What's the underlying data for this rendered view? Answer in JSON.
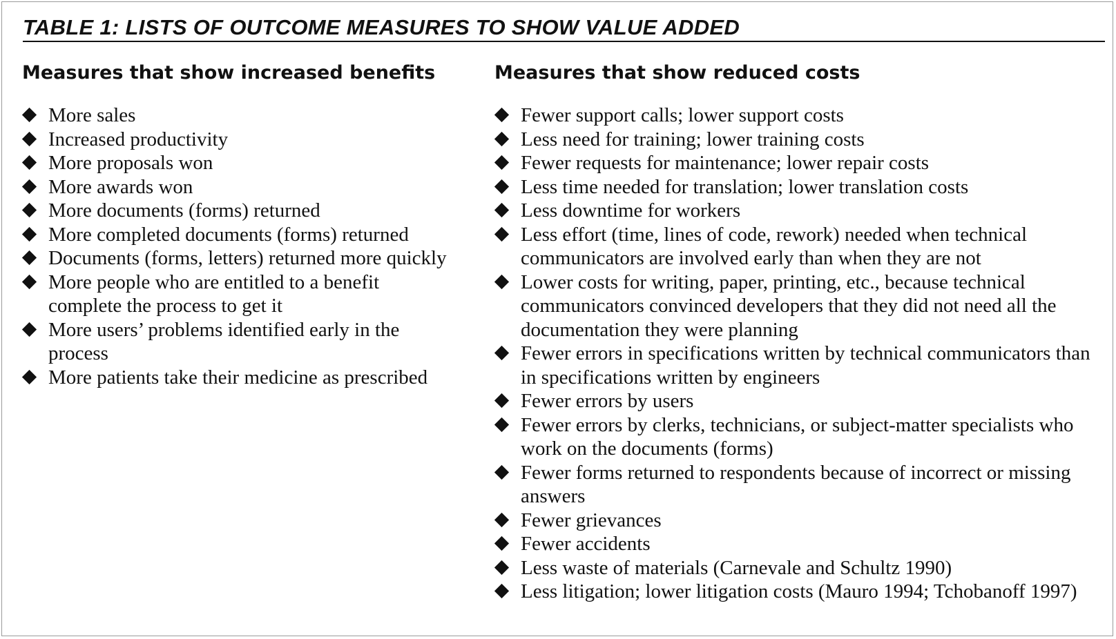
{
  "title": "TABLE 1: LISTS OF OUTCOME MEASURES TO SHOW VALUE ADDED",
  "columns": [
    {
      "heading": "Measures that show increased benefits",
      "items": [
        "More sales",
        "Increased productivity",
        "More proposals won",
        "More awards won",
        "More documents (forms) returned",
        "More completed documents (forms) returned",
        "Documents (forms, letters) returned more quickly",
        "More people who are entitled to a benefit complete the process to get it",
        "More users’ problems identified early in the process",
        "More patients take their medicine as prescribed"
      ]
    },
    {
      "heading": "Measures that show reduced costs",
      "items": [
        "Fewer support calls; lower support costs",
        "Less need for training; lower training costs",
        "Fewer requests for maintenance; lower repair costs",
        "Less time needed for translation; lower translation costs",
        "Less downtime for workers",
        "Less effort (time, lines of code, rework) needed when technical communicators are involved early than when they are not",
        "Lower costs for writing, paper, printing, etc., because technical communicators convinced developers that they did not need all the documentation they were planning",
        "Fewer errors in specifications written by technical communicators than in specifications written by engineers",
        "Fewer errors by users",
        "Fewer errors by clerks, technicians, or subject-matter specialists who work on the documents (forms)",
        "Fewer forms returned to respondents because of incorrect or missing answers",
        "Fewer grievances",
        "Fewer accidents",
        "Less waste of materials (Carnevale and Schultz 1990)",
        "Less litigation; lower litigation costs (Mauro 1994; Tchobanoff 1997)"
      ]
    }
  ]
}
